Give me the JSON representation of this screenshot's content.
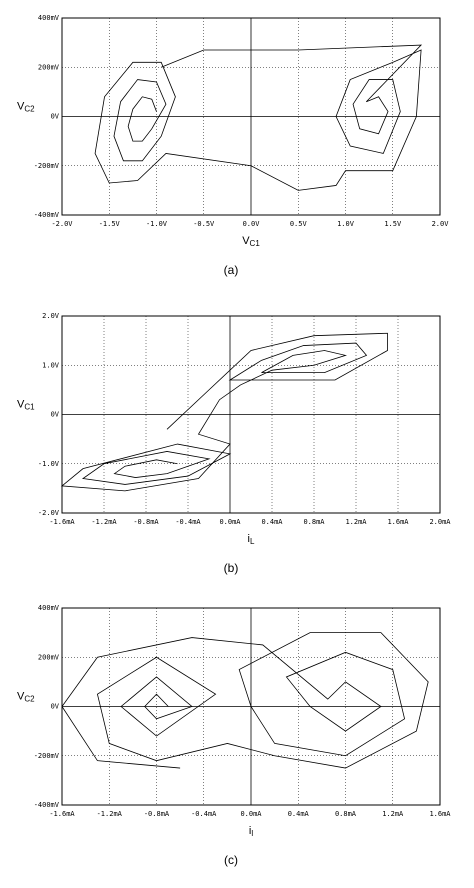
{
  "chart_data": [
    {
      "type": "line",
      "caption": "(a)",
      "xlabel": "V",
      "xlabel_sub": "C1",
      "ylabel": "V",
      "ylabel_sub": "C2",
      "color": "#000000",
      "grid": true,
      "xlim": [
        -2,
        2
      ],
      "ylim": [
        -0.4,
        0.4
      ],
      "xticks": [
        {
          "value": -2,
          "label": "-2.0V"
        },
        {
          "value": -1.5,
          "label": "-1.5V"
        },
        {
          "value": -1,
          "label": "-1.0V"
        },
        {
          "value": -0.5,
          "label": "-0.5V"
        },
        {
          "value": 0,
          "label": "0.0V"
        },
        {
          "value": 0.5,
          "label": "0.5V"
        },
        {
          "value": 1,
          "label": "1.0V"
        },
        {
          "value": 1.5,
          "label": "1.5V"
        },
        {
          "value": 2,
          "label": "2.0V"
        }
      ],
      "yticks": [
        {
          "value": 0.4,
          "label": "400mV"
        },
        {
          "value": 0.2,
          "label": "200mV"
        },
        {
          "value": 0,
          "label": "0V"
        },
        {
          "value": -0.2,
          "label": "-200mV"
        },
        {
          "value": -0.4,
          "label": "-400mV"
        }
      ],
      "x": [
        -1.0,
        -1.05,
        -1.15,
        -1.25,
        -1.3,
        -1.25,
        -1.15,
        -1.05,
        -0.9,
        -1.0,
        -1.2,
        -1.38,
        -1.45,
        -1.35,
        -1.15,
        -0.95,
        -0.8,
        -0.95,
        -1.25,
        -1.55,
        -1.65,
        -1.5,
        -1.2,
        -0.9,
        0.0,
        0.5,
        0.9,
        1.0,
        1.5,
        1.75,
        1.8,
        1.5,
        1.05,
        0.9,
        1.05,
        1.4,
        1.58,
        1.5,
        1.25,
        1.08,
        1.15,
        1.35,
        1.45,
        1.35,
        1.22,
        1.8,
        0.5,
        -0.5,
        -0.95
      ],
      "y": [
        0.02,
        0.07,
        0.08,
        0.03,
        -0.04,
        -0.1,
        -0.1,
        -0.05,
        0.05,
        0.14,
        0.15,
        0.06,
        -0.08,
        -0.18,
        -0.18,
        -0.08,
        0.08,
        0.22,
        0.22,
        0.08,
        -0.15,
        -0.27,
        -0.26,
        -0.15,
        -0.2,
        -0.3,
        -0.28,
        -0.22,
        -0.22,
        0.0,
        0.27,
        0.22,
        0.15,
        0.0,
        -0.12,
        -0.15,
        0.02,
        0.15,
        0.15,
        0.05,
        -0.05,
        -0.07,
        0.02,
        0.08,
        0.06,
        0.29,
        0.27,
        0.27,
        0.2
      ]
    },
    {
      "type": "line",
      "caption": "(b)",
      "xlabel": "i",
      "xlabel_sub": "L",
      "ylabel": "V",
      "ylabel_sub": "C1",
      "color": "#000000",
      "grid": true,
      "xlim": [
        -1.6,
        2.0
      ],
      "ylim": [
        -2,
        2
      ],
      "xticks": [
        {
          "value": -1.6,
          "label": "-1.6mA"
        },
        {
          "value": -1.2,
          "label": "-1.2mA"
        },
        {
          "value": -0.8,
          "label": "-0.8mA"
        },
        {
          "value": -0.4,
          "label": "-0.4mA"
        },
        {
          "value": 0,
          "label": "0.0mA"
        },
        {
          "value": 0.4,
          "label": "0.4mA"
        },
        {
          "value": 0.8,
          "label": "0.8mA"
        },
        {
          "value": 1.2,
          "label": "1.2mA"
        },
        {
          "value": 1.6,
          "label": "1.6mA"
        },
        {
          "value": 2.0,
          "label": "2.0mA"
        }
      ],
      "yticks": [
        {
          "value": 2,
          "label": "2.0V"
        },
        {
          "value": 1,
          "label": "1.0V"
        },
        {
          "value": 0,
          "label": "0V"
        },
        {
          "value": -1,
          "label": "-1.0V"
        },
        {
          "value": -2,
          "label": "-2.0V"
        }
      ],
      "x": [
        -0.5,
        -0.7,
        -1.0,
        -1.1,
        -0.9,
        -0.6,
        -0.2,
        -0.6,
        -1.2,
        -1.4,
        -1.0,
        -0.4,
        0.0,
        -0.5,
        -1.4,
        -1.6,
        -1.0,
        -0.3,
        0.0,
        -0.3,
        -0.1,
        0.1,
        0.4,
        0.8,
        1.1,
        0.9,
        0.6,
        0.3,
        0.9,
        1.3,
        1.2,
        0.7,
        0.3,
        0.0,
        1.0,
        1.5,
        1.5,
        0.8,
        0.2,
        -0.2,
        -0.6
      ],
      "y": [
        -1.0,
        -0.92,
        -1.05,
        -1.2,
        -1.28,
        -1.2,
        -0.9,
        -0.75,
        -1.0,
        -1.3,
        -1.42,
        -1.25,
        -0.8,
        -0.6,
        -1.1,
        -1.45,
        -1.55,
        -1.3,
        -0.6,
        -0.4,
        0.3,
        0.6,
        0.9,
        1.0,
        1.2,
        1.3,
        1.2,
        0.85,
        0.85,
        1.2,
        1.45,
        1.4,
        1.1,
        0.7,
        0.7,
        1.3,
        1.65,
        1.6,
        1.3,
        0.5,
        -0.3
      ]
    },
    {
      "type": "line",
      "caption": "(c)",
      "xlabel": "i",
      "xlabel_sub": "l",
      "ylabel": "V",
      "ylabel_sub": "C2",
      "color": "#000000",
      "grid": true,
      "xlim": [
        -1.6,
        1.6
      ],
      "ylim": [
        -0.4,
        0.4
      ],
      "xticks": [
        {
          "value": -1.6,
          "label": "-1.6mA"
        },
        {
          "value": -1.2,
          "label": "-1.2mA"
        },
        {
          "value": -0.8,
          "label": "-0.8mA"
        },
        {
          "value": -0.4,
          "label": "-0.4mA"
        },
        {
          "value": 0,
          "label": "0.0mA"
        },
        {
          "value": 0.4,
          "label": "0.4mA"
        },
        {
          "value": 0.8,
          "label": "0.8mA"
        },
        {
          "value": 1.2,
          "label": "1.2mA"
        },
        {
          "value": 1.6,
          "label": "1.6mA"
        }
      ],
      "yticks": [
        {
          "value": 0.4,
          "label": "400mV"
        },
        {
          "value": 0.2,
          "label": "200mV"
        },
        {
          "value": 0,
          "label": "0V"
        },
        {
          "value": -0.2,
          "label": "-200mV"
        },
        {
          "value": -0.4,
          "label": "-400mV"
        }
      ],
      "x": [
        -0.7,
        -0.8,
        -0.9,
        -0.8,
        -0.5,
        -0.8,
        -1.1,
        -0.8,
        -0.3,
        -0.8,
        -1.3,
        -1.2,
        -0.8,
        -0.2,
        0.2,
        0.8,
        1.4,
        1.5,
        1.1,
        0.5,
        -0.1,
        0.0,
        0.2,
        0.8,
        1.3,
        1.2,
        0.8,
        0.3,
        0.5,
        0.8,
        1.1,
        0.8,
        0.65,
        0.1,
        -0.5,
        -1.3,
        -1.6,
        -1.3,
        -0.6
      ],
      "y": [
        0.0,
        0.05,
        0.0,
        -0.05,
        0.0,
        0.12,
        0.0,
        -0.12,
        0.05,
        0.2,
        0.05,
        -0.15,
        -0.22,
        -0.15,
        -0.2,
        -0.25,
        -0.1,
        0.1,
        0.3,
        0.3,
        0.15,
        0.0,
        -0.15,
        -0.2,
        -0.05,
        0.15,
        0.22,
        0.12,
        0.0,
        -0.1,
        0.0,
        0.1,
        0.03,
        0.25,
        0.28,
        0.2,
        0.0,
        -0.22,
        -0.25
      ]
    }
  ]
}
